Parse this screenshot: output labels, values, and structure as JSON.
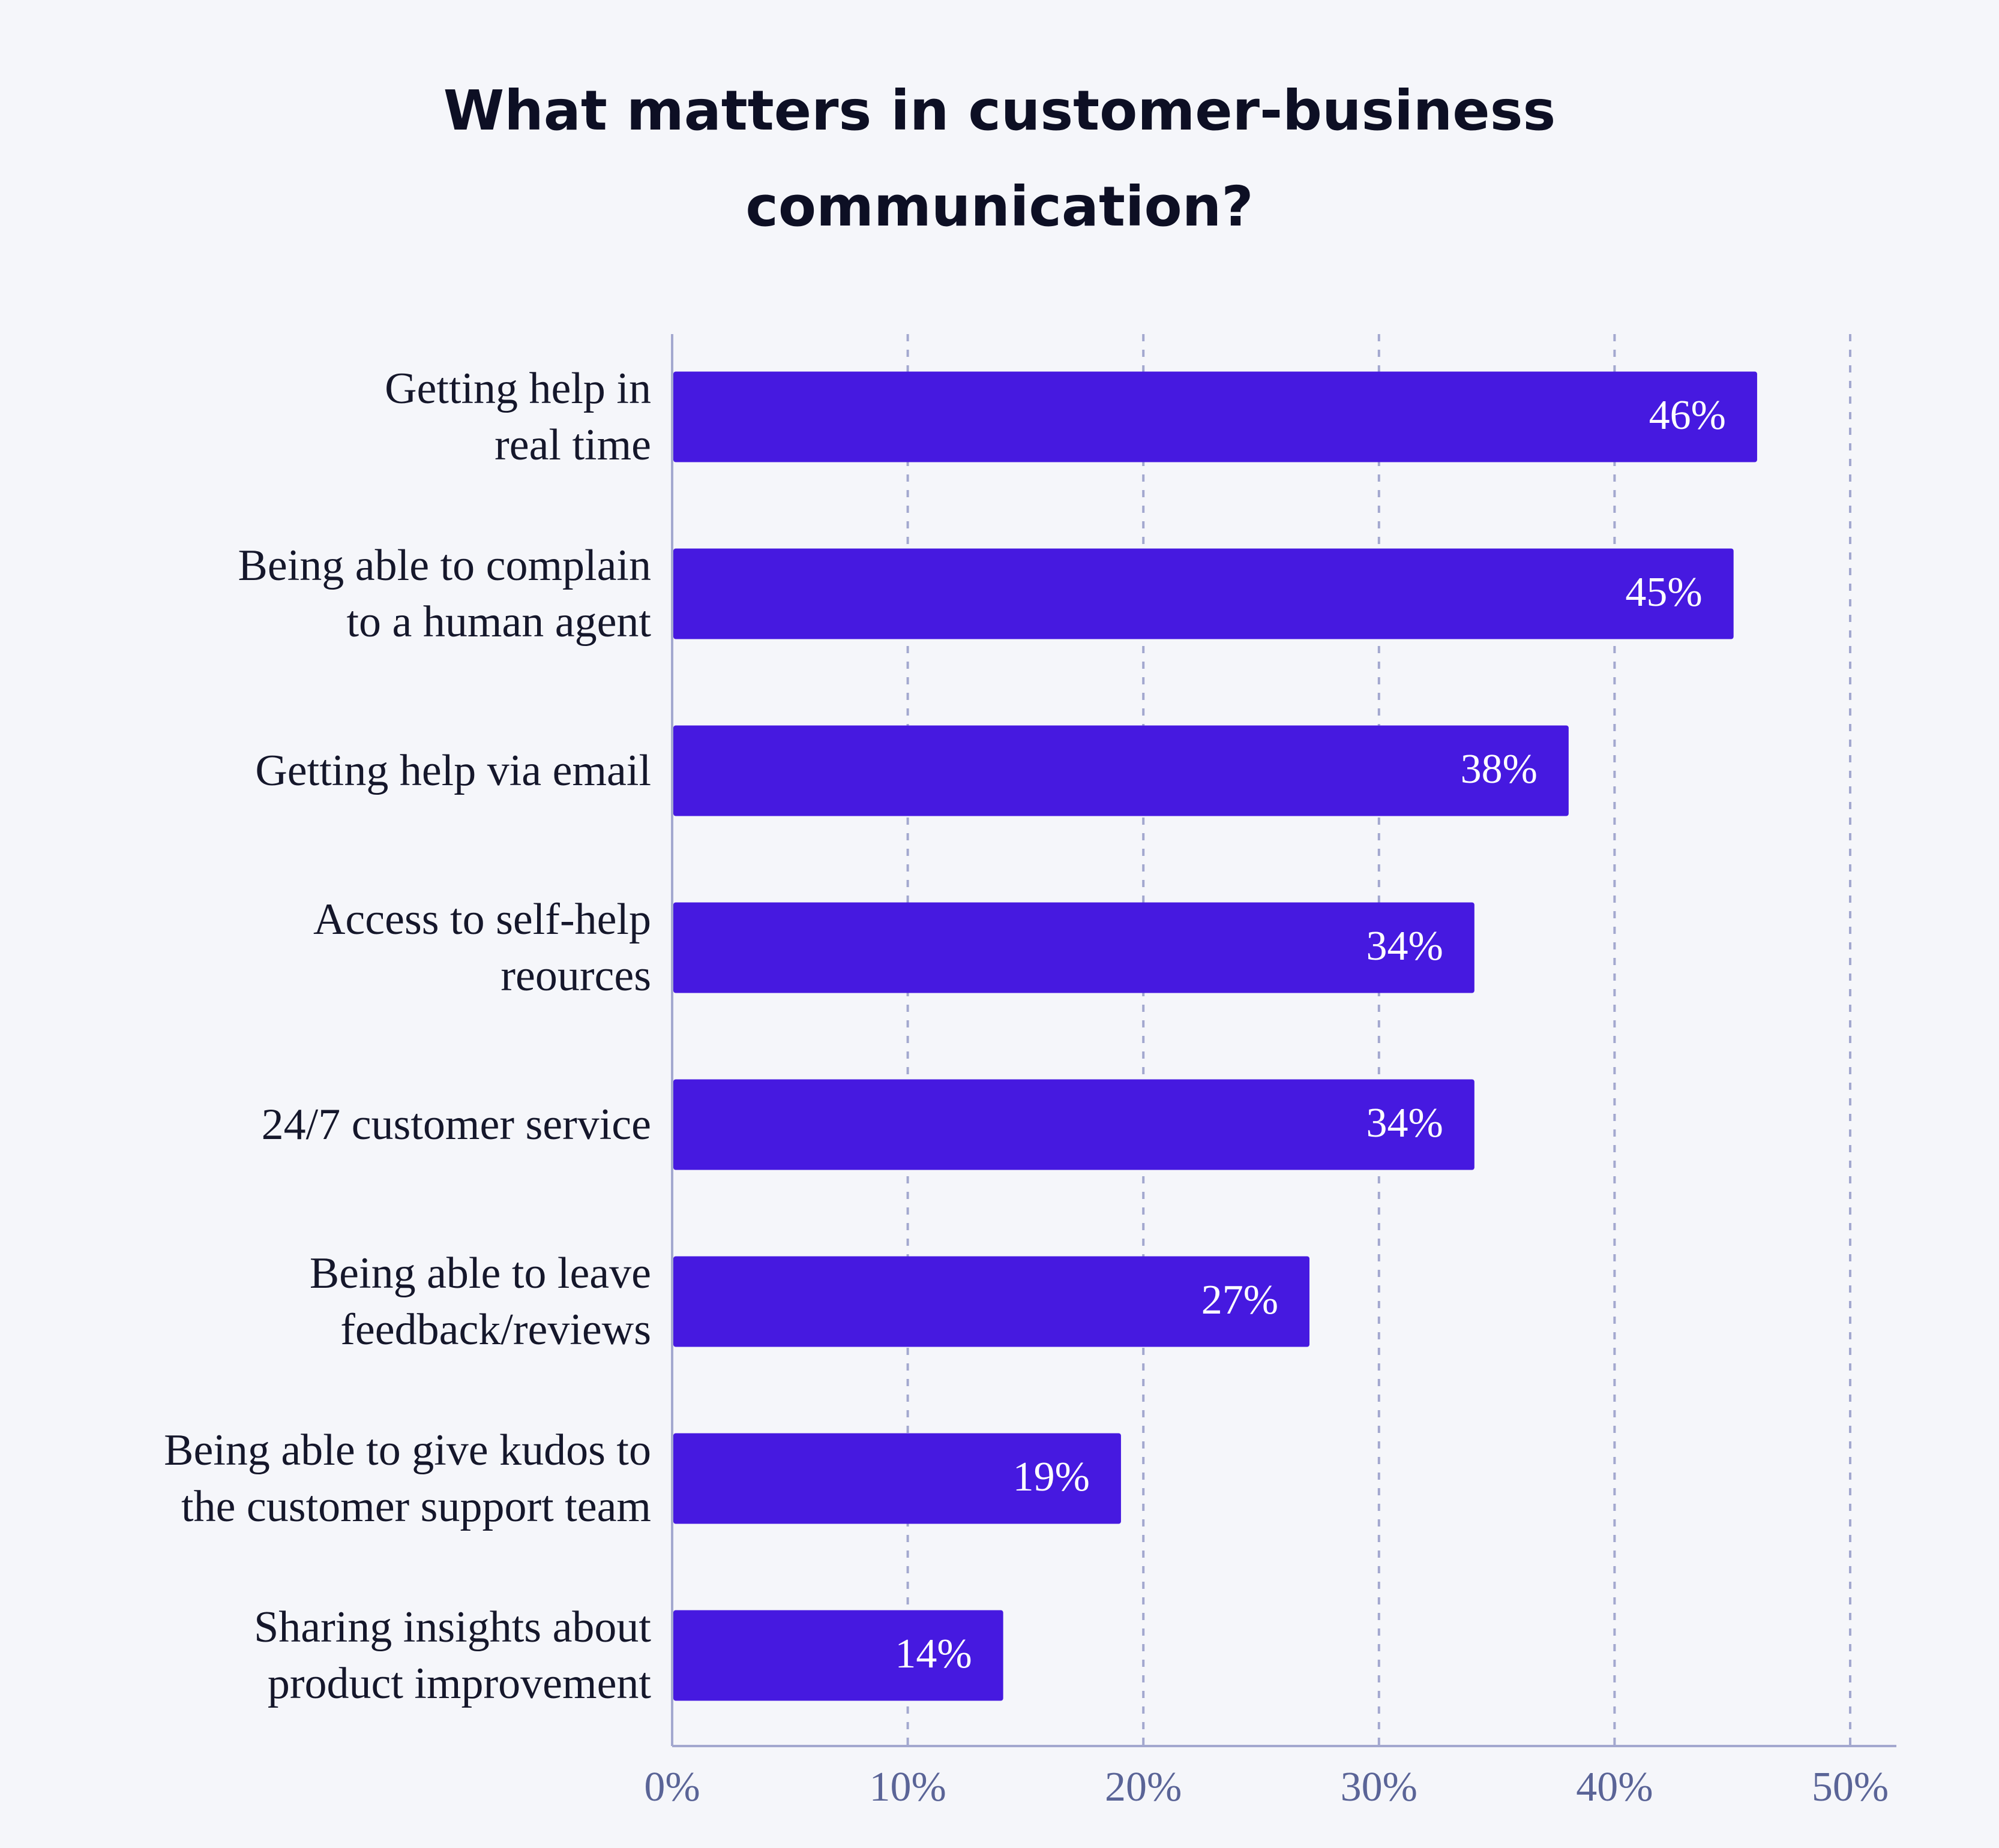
{
  "chart_data": {
    "type": "bar",
    "orientation": "horizontal",
    "title": "What matters in customer-business\ncommunication?",
    "categories": [
      "Getting help in\nreal time",
      "Being able to complain\nto a human agent",
      "Getting help via email",
      "Access to self-help\nreources",
      "24/7 customer service",
      "Being able to leave\nfeedback/reviews",
      "Being able to give kudos to\nthe customer support team",
      "Sharing insights about\nproduct improvement"
    ],
    "values": [
      46,
      45,
      38,
      34,
      34,
      27,
      19,
      14
    ],
    "value_labels": [
      "46%",
      "45%",
      "38%",
      "34%",
      "34%",
      "27%",
      "19%",
      "14%"
    ],
    "color": "#4619e0",
    "xlim": [
      0,
      50
    ],
    "xticks": [
      {
        "value": 0,
        "label": "0%"
      },
      {
        "value": 10,
        "label": "10%"
      },
      {
        "value": 20,
        "label": "20%"
      },
      {
        "value": 30,
        "label": "30%"
      },
      {
        "value": 40,
        "label": "40%"
      },
      {
        "value": 50,
        "label": "50%"
      }
    ],
    "grid": true
  }
}
